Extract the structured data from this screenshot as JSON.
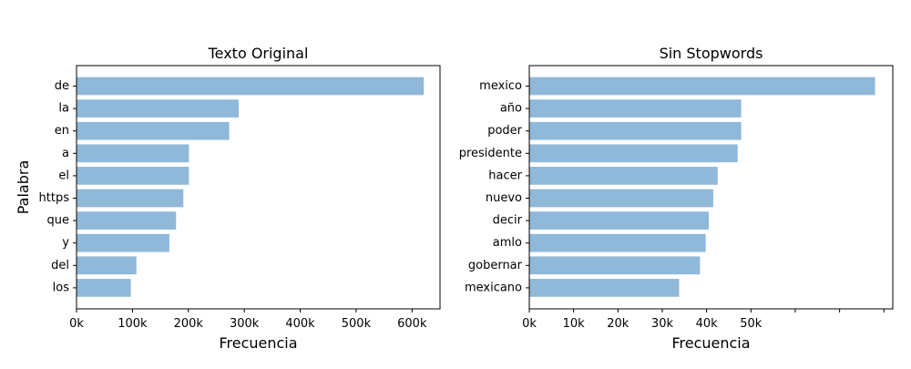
{
  "chart_data": [
    {
      "type": "bar",
      "orientation": "horizontal",
      "title": "Texto Original",
      "xlabel": "Frecuencia",
      "ylabel": "Palabra",
      "categories": [
        "de",
        "la",
        "en",
        "a",
        "el",
        "https",
        "que",
        "y",
        "del",
        "los"
      ],
      "values": [
        621000,
        290000,
        273000,
        201000,
        201000,
        191000,
        178000,
        166000,
        107000,
        97000
      ],
      "xlim": [
        0,
        650000
      ],
      "xticks": [
        0,
        100000,
        200000,
        300000,
        400000,
        500000,
        600000
      ],
      "xtick_labels": [
        "0k",
        "100k",
        "200k",
        "300k",
        "400k",
        "500k",
        "600k"
      ],
      "grid": false,
      "color": "#8fb8d9"
    },
    {
      "type": "bar",
      "orientation": "horizontal",
      "title": "Sin Stopwords",
      "xlabel": "Frecuencia",
      "ylabel": "",
      "categories": [
        "mexico",
        "año",
        "poder",
        "presidente",
        "hacer",
        "nuevo",
        "decir",
        "amlo",
        "gobernar",
        "mexicano"
      ],
      "values": [
        78000,
        47800,
        47800,
        47000,
        42500,
        41500,
        40500,
        39800,
        38500,
        33800
      ],
      "xlim": [
        0,
        82000
      ],
      "xticks": [
        0,
        10000,
        20000,
        30000,
        40000,
        50000,
        60000,
        70000,
        80000
      ],
      "xtick_labels": [
        "0k",
        "10k",
        "20k",
        "30k",
        "40k",
        "50k",
        "",
        "",
        ""
      ],
      "grid": false,
      "color": "#8fb8d9"
    }
  ]
}
